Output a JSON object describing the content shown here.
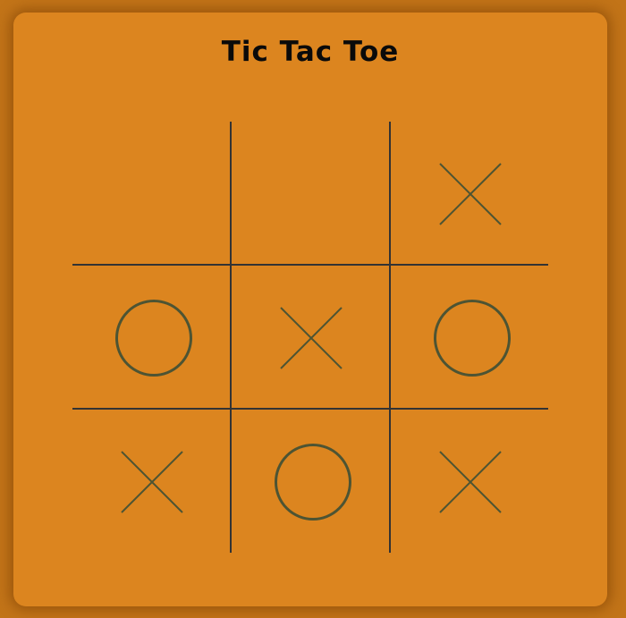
{
  "game": {
    "title": "Tic Tac Toe",
    "cells": [
      "",
      "",
      "X",
      "O",
      "X",
      "O",
      "X",
      "O",
      "X"
    ]
  },
  "colors": {
    "background": "#c27418",
    "panel": "#dc851f",
    "grid_line": "#333333",
    "mark": "#4d5433"
  }
}
